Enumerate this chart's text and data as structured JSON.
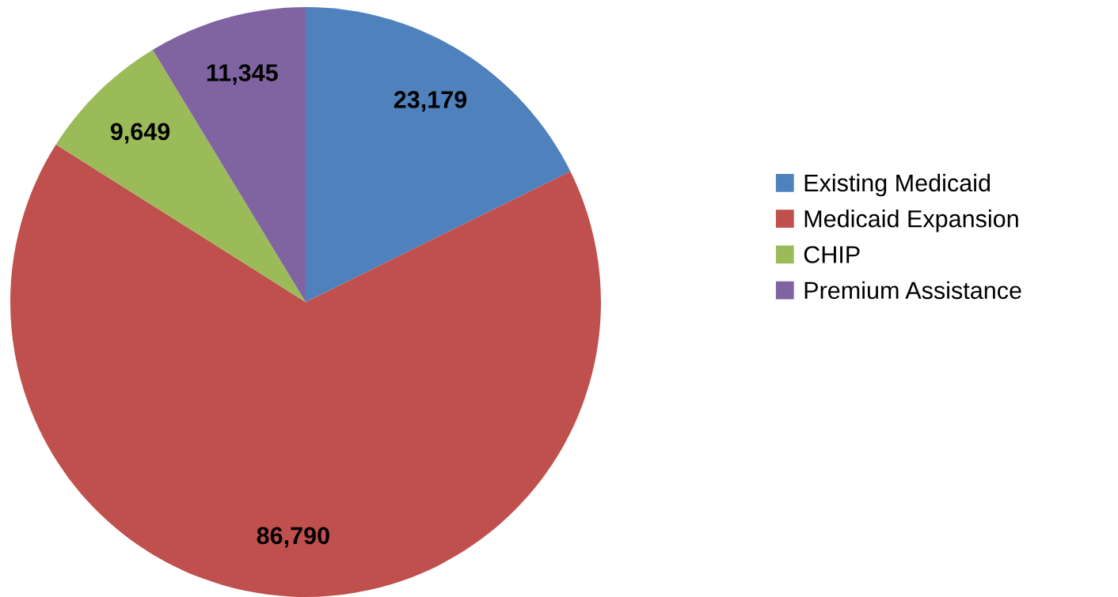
{
  "chart_data": {
    "type": "pie",
    "categories": [
      "Existing Medicaid",
      "Medicaid Expansion",
      "CHIP",
      "Premium Assistance"
    ],
    "values": [
      23179,
      86790,
      9649,
      11345
    ],
    "colors": [
      "#4f81bd",
      "#c0504d",
      "#9bbb59",
      "#8064a2"
    ],
    "value_labels": [
      "23,179",
      "86,790",
      "9,649",
      "11,345"
    ],
    "legend": "right"
  }
}
